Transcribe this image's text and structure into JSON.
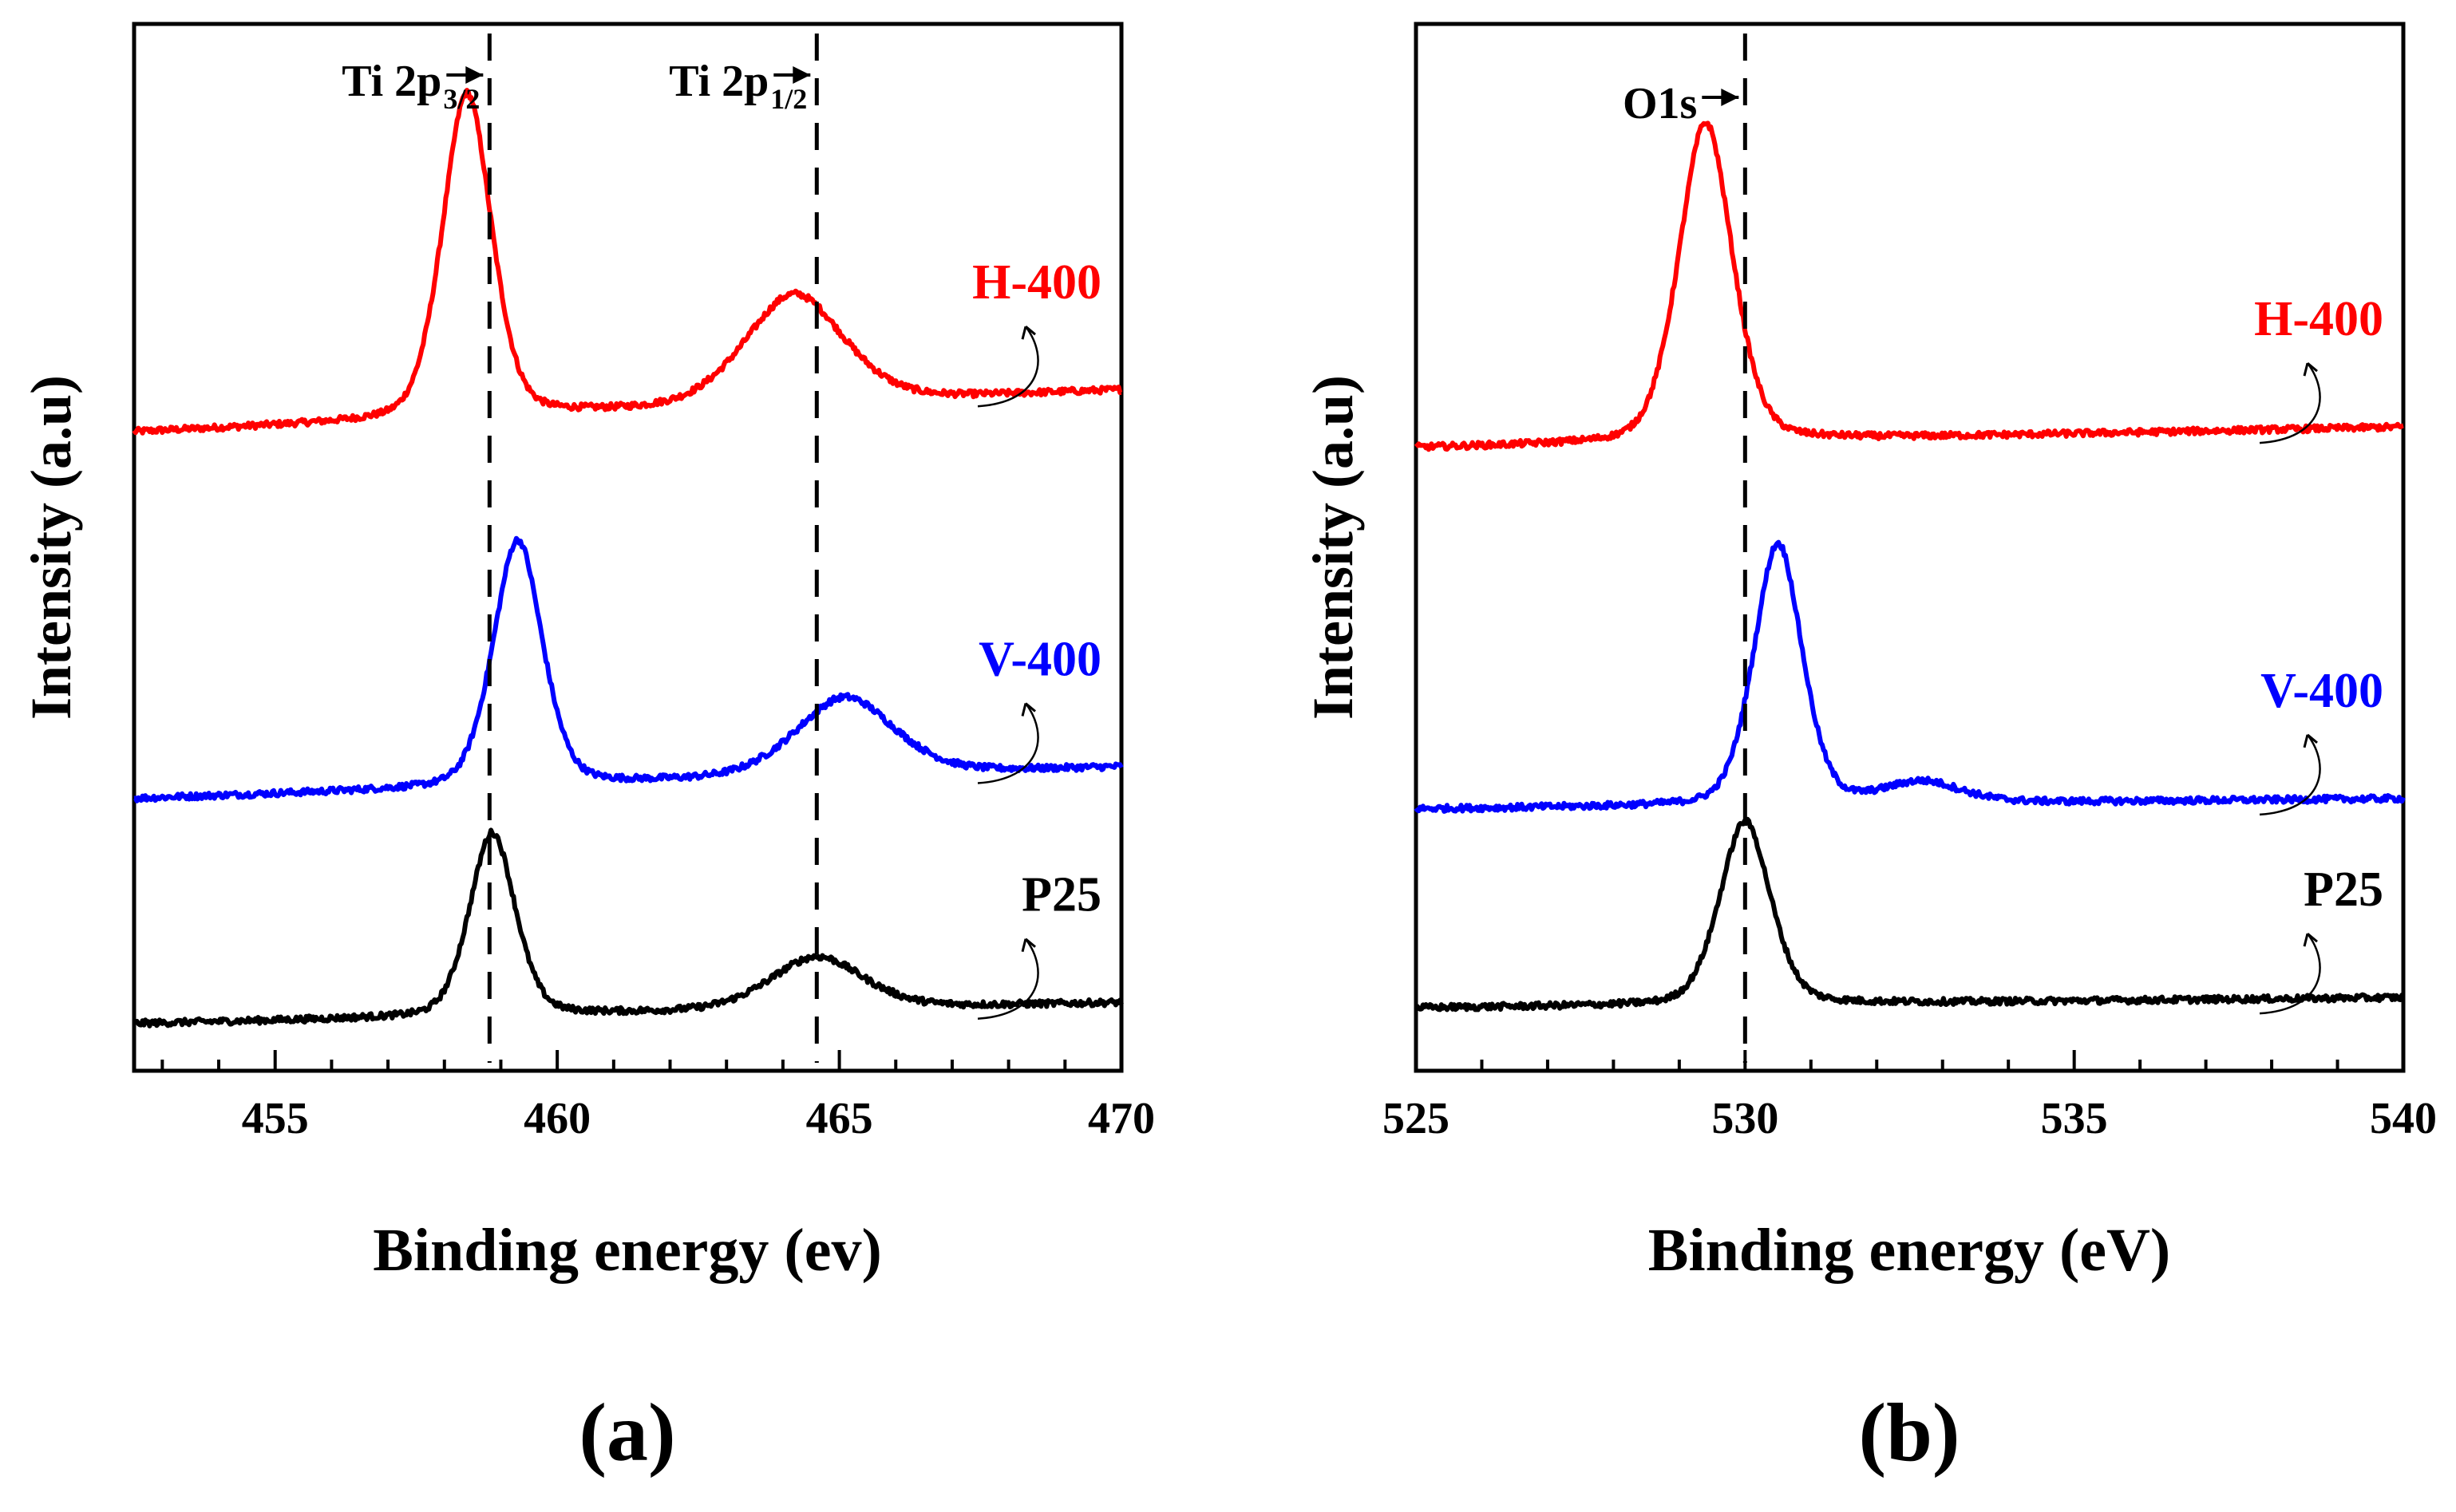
{
  "figure": {
    "description_labels": {
      "panel_a": "(a)",
      "panel_b": "(b)"
    }
  },
  "colors": {
    "H-400": "#ff0000",
    "V-400": "#0000ff",
    "P25": "#000000",
    "axis": "#000000"
  },
  "chart_data": [
    {
      "type": "line",
      "panel_label": "(a)",
      "title": "",
      "xlabel": "Binding energy (ev)",
      "ylabel": "Intensity (a.u)",
      "xlim": [
        452.5,
        470
      ],
      "ylim": [
        0,
        1
      ],
      "xticks": [
        455,
        460,
        465,
        470
      ],
      "xtick_labels": [
        "455",
        "460",
        "465",
        "470"
      ],
      "grid": false,
      "reference_lines": [
        {
          "x": 458.8,
          "label": "Ti 2p",
          "sub": "3/2"
        },
        {
          "x": 464.6,
          "label": "Ti 2p",
          "sub": "1/2"
        }
      ],
      "series": [
        {
          "name": "H-400",
          "color": "#ff0000",
          "baseline": 0.61,
          "slope": 0.04,
          "peaks": [
            {
              "center": 458.4,
              "height": 0.31,
              "width": 0.45
            },
            {
              "center": 464.2,
              "height": 0.105,
              "width": 0.9
            }
          ]
        },
        {
          "name": "V-400",
          "color": "#0000ff",
          "baseline": 0.26,
          "slope": 0.03,
          "peaks": [
            {
              "center": 459.3,
              "height": 0.235,
              "width": 0.45
            },
            {
              "center": 465.1,
              "height": 0.075,
              "width": 0.9
            }
          ]
        },
        {
          "name": "P25",
          "color": "#000000",
          "baseline": 0.045,
          "slope": 0.02,
          "peaks": [
            {
              "center": 458.85,
              "height": 0.175,
              "width": 0.42
            },
            {
              "center": 464.6,
              "height": 0.05,
              "width": 0.85
            }
          ]
        }
      ]
    },
    {
      "type": "line",
      "panel_label": "(b)",
      "title": "",
      "xlabel": "Binding energy (eV)",
      "ylabel": "Intensity (a.u)",
      "xlim": [
        525,
        540
      ],
      "ylim": [
        0,
        1
      ],
      "xticks": [
        525,
        530,
        535,
        540
      ],
      "xtick_labels": [
        "525",
        "530",
        "535",
        "540"
      ],
      "grid": false,
      "reference_lines": [
        {
          "x": 530.0,
          "label": "O1s",
          "sub": ""
        }
      ],
      "series": [
        {
          "name": "H-400",
          "color": "#ff0000",
          "baseline": 0.595,
          "slope": 0.02,
          "peaks": [
            {
              "center": 529.4,
              "height": 0.305,
              "width": 0.42
            }
          ]
        },
        {
          "name": "V-400",
          "color": "#0000ff",
          "baseline": 0.25,
          "slope": 0.01,
          "peaks": [
            {
              "center": 530.5,
              "height": 0.25,
              "width": 0.38
            },
            {
              "center": 532.7,
              "height": 0.02,
              "width": 0.6
            }
          ]
        },
        {
          "name": "P25",
          "color": "#000000",
          "baseline": 0.06,
          "slope": 0.01,
          "peaks": [
            {
              "center": 530.0,
              "height": 0.175,
              "width": 0.4
            }
          ]
        }
      ]
    }
  ]
}
